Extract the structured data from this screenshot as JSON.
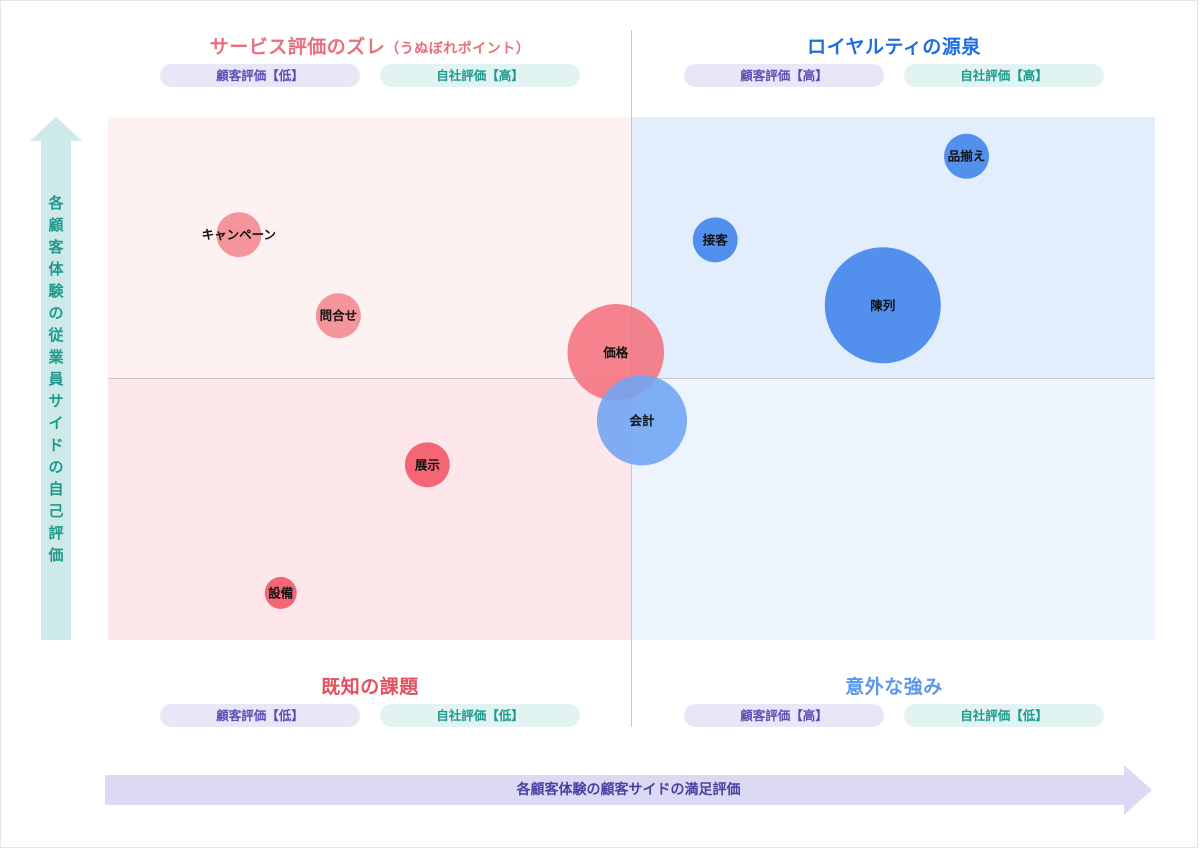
{
  "quadrants": {
    "top_left": {
      "title": "サービス評価のズレ",
      "subtitle": "（うぬぼれポイント）",
      "color": "#e8707c",
      "customer_pill": "顧客評価【低】",
      "self_pill": "自社評価【高】"
    },
    "top_right": {
      "title": "ロイヤルティの源泉",
      "color": "#1f6ee0",
      "customer_pill": "顧客評価【高】",
      "self_pill": "自社評価【高】"
    },
    "bottom_left": {
      "title": "既知の課題",
      "color": "#e5505f",
      "customer_pill": "顧客評価【低】",
      "self_pill": "自社評価【低】"
    },
    "bottom_right": {
      "title": "意外な強み",
      "color": "#5a98ea",
      "customer_pill": "顧客評価【高】",
      "self_pill": "自社評価【低】"
    }
  },
  "axes": {
    "y_label": "各顧客体験の従業員サイドの自己評価",
    "x_label": "各顧客体験の顧客サイドの満足評価"
  },
  "chart_data": {
    "type": "scatter",
    "variant": "bubble-quadrant",
    "xlabel": "各顧客体験の顧客サイドの満足評価",
    "ylabel": "各顧客体験の従業員サイドの自己評価",
    "xlim": [
      -1,
      1
    ],
    "ylim": [
      -1,
      1
    ],
    "grid": false,
    "points": [
      {
        "label": "品揃え",
        "x": 0.64,
        "y": 0.85,
        "size": 0.45,
        "color": "#3f83ea"
      },
      {
        "label": "接客",
        "x": 0.16,
        "y": 0.53,
        "size": 0.45,
        "color": "#3f83ea"
      },
      {
        "label": "陳列",
        "x": 0.48,
        "y": 0.28,
        "size": 1.0,
        "color": "#3f83ea"
      },
      {
        "label": "キャンペーン",
        "x": -0.75,
        "y": 0.55,
        "size": 0.45,
        "color": "#f28790"
      },
      {
        "label": "問合せ",
        "x": -0.56,
        "y": 0.24,
        "size": 0.45,
        "color": "#f28790"
      },
      {
        "label": "価格",
        "x": -0.03,
        "y": 0.1,
        "size": 0.85,
        "color": "#f4727e"
      },
      {
        "label": "会計",
        "x": 0.02,
        "y": -0.16,
        "size": 0.8,
        "color": "#6ea5f2"
      },
      {
        "label": "展示",
        "x": -0.39,
        "y": -0.33,
        "size": 0.45,
        "color": "#f25463"
      },
      {
        "label": "設備",
        "x": -0.67,
        "y": -0.82,
        "size": 0.35,
        "color": "#f25463"
      }
    ]
  }
}
